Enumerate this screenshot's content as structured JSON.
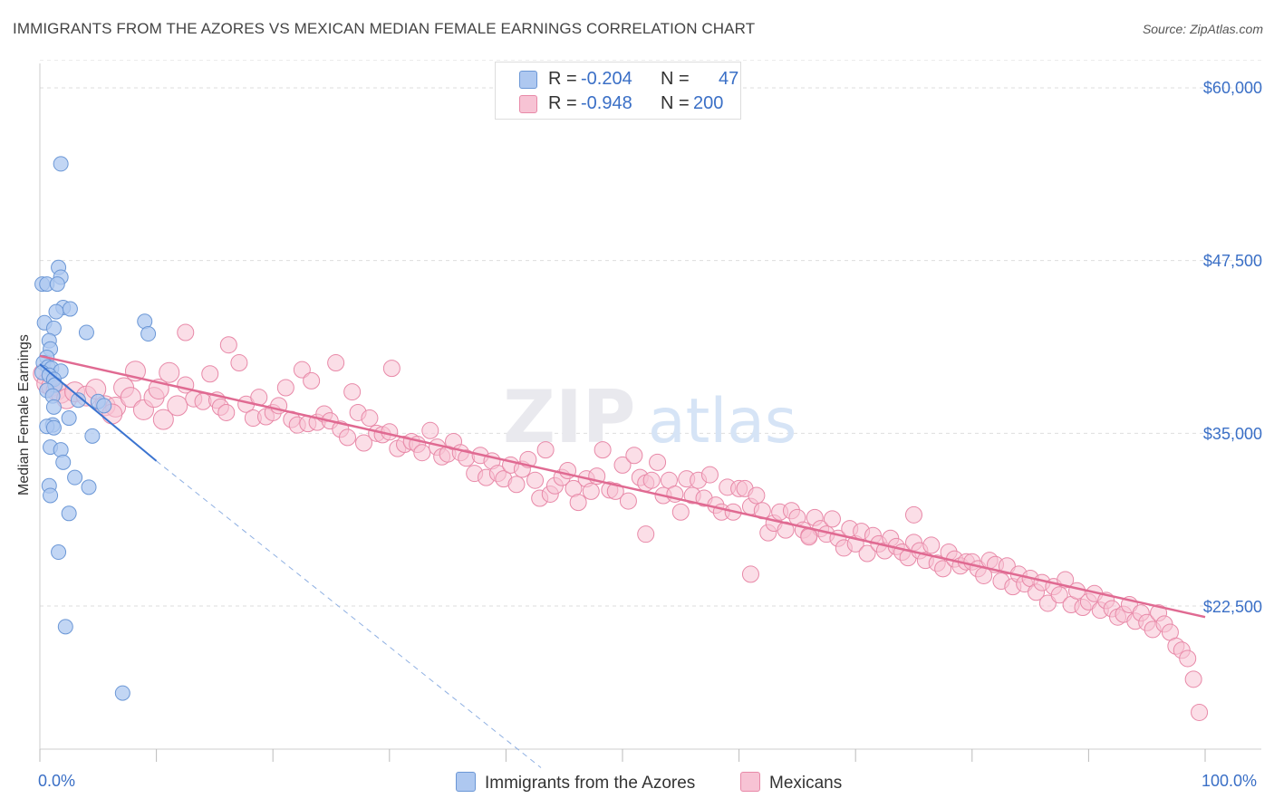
{
  "title": "IMMIGRANTS FROM THE AZORES VS MEXICAN MEDIAN FEMALE EARNINGS CORRELATION CHART",
  "source": "Source: ZipAtlas.com",
  "watermark": {
    "zip": "ZIP",
    "atlas": "atlas"
  },
  "legend": {
    "azores": {
      "r_label": "R =",
      "r_value": "-0.204",
      "n_label": "N =",
      "n_value": "47"
    },
    "mexicans": {
      "r_label": "R =",
      "r_value": "-0.948",
      "n_label": "N =",
      "n_value": "200"
    }
  },
  "bottom_legend": {
    "azores": "Immigrants from the Azores",
    "mexicans": "Mexicans"
  },
  "axis": {
    "x_min_label": "0.0%",
    "x_max_label": "100.0%",
    "y_label": "Median Female Earnings",
    "y_ticks": [
      "$60,000",
      "$47,500",
      "$35,000",
      "$22,500"
    ]
  },
  "colors": {
    "azores_fill": "#aec8f0",
    "azores_stroke": "#6b97d6",
    "azores_line": "#3a73d0",
    "mexican_fill": "#f7c3d4",
    "mexican_stroke": "#e889a8",
    "mexican_line": "#e06a92",
    "tick_text": "#3a6fc6"
  },
  "chart_data": {
    "type": "scatter",
    "title": "IMMIGRANTS FROM THE AZORES VS MEXICAN MEDIAN FEMALE EARNINGS CORRELATION CHART",
    "xlabel": "",
    "ylabel": "Median Female Earnings",
    "xlim": [
      0,
      100
    ],
    "ylim": [
      11000,
      62000
    ],
    "y_ticks": [
      22500,
      35000,
      47500,
      60000
    ],
    "series": [
      {
        "name": "Immigrants from the Azores",
        "r": -0.204,
        "n": 47,
        "trend": {
          "x0": 0,
          "y0": 40000,
          "x1": 10,
          "y1": 33000,
          "dashed_to_x": 43,
          "dashed_y_end": 10800
        },
        "points": [
          [
            1.8,
            54500
          ],
          [
            1.6,
            47000
          ],
          [
            1.8,
            46300
          ],
          [
            0.2,
            45800
          ],
          [
            0.6,
            45800
          ],
          [
            1.5,
            45800
          ],
          [
            2.0,
            44100
          ],
          [
            1.4,
            43800
          ],
          [
            2.6,
            44000
          ],
          [
            0.4,
            43000
          ],
          [
            1.2,
            42600
          ],
          [
            4.0,
            42300
          ],
          [
            9.0,
            43100
          ],
          [
            9.3,
            42200
          ],
          [
            0.8,
            41700
          ],
          [
            0.9,
            41100
          ],
          [
            0.6,
            40500
          ],
          [
            0.3,
            40100
          ],
          [
            0.7,
            39800
          ],
          [
            1.0,
            39700
          ],
          [
            1.8,
            39500
          ],
          [
            0.2,
            39400
          ],
          [
            0.8,
            39200
          ],
          [
            1.2,
            38900
          ],
          [
            1.3,
            38500
          ],
          [
            0.6,
            38100
          ],
          [
            1.1,
            37700
          ],
          [
            3.3,
            37400
          ],
          [
            5.0,
            37300
          ],
          [
            5.5,
            37000
          ],
          [
            1.2,
            36900
          ],
          [
            2.5,
            36100
          ],
          [
            1.1,
            35600
          ],
          [
            0.6,
            35500
          ],
          [
            1.2,
            35400
          ],
          [
            4.5,
            34800
          ],
          [
            0.9,
            34000
          ],
          [
            1.8,
            33800
          ],
          [
            2.0,
            32900
          ],
          [
            3.0,
            31800
          ],
          [
            4.2,
            31100
          ],
          [
            0.8,
            31200
          ],
          [
            0.9,
            30500
          ],
          [
            2.5,
            29200
          ],
          [
            1.6,
            26400
          ],
          [
            2.2,
            21000
          ],
          [
            7.1,
            16200
          ]
        ]
      },
      {
        "name": "Mexicans",
        "r": -0.948,
        "n": 200,
        "trend": {
          "x0": 0,
          "y0": 40600,
          "x1": 100,
          "y1": 21700
        },
        "points": [
          [
            0.3,
            39300
          ],
          [
            0.6,
            38600
          ],
          [
            1.0,
            38400
          ],
          [
            1.4,
            38100
          ],
          [
            1.8,
            37900
          ],
          [
            2.3,
            37500
          ],
          [
            3.0,
            38000
          ],
          [
            4.0,
            37700
          ],
          [
            4.8,
            38200
          ],
          [
            5.6,
            37000
          ],
          [
            6.5,
            36900
          ],
          [
            6.2,
            36400
          ],
          [
            7.2,
            38300
          ],
          [
            7.8,
            37600
          ],
          [
            8.2,
            39500
          ],
          [
            8.9,
            36700
          ],
          [
            9.8,
            37600
          ],
          [
            10.2,
            38200
          ],
          [
            10.6,
            36000
          ],
          [
            11.1,
            39400
          ],
          [
            11.8,
            37000
          ],
          [
            12.5,
            38500
          ],
          [
            13.2,
            37500
          ],
          [
            14.0,
            37300
          ],
          [
            14.6,
            39300
          ],
          [
            12.5,
            42300
          ],
          [
            15.2,
            37400
          ],
          [
            15.5,
            36900
          ],
          [
            16.0,
            36500
          ],
          [
            16.2,
            41400
          ],
          [
            17.1,
            40100
          ],
          [
            17.7,
            37100
          ],
          [
            18.3,
            36100
          ],
          [
            18.8,
            37600
          ],
          [
            19.4,
            36200
          ],
          [
            20.0,
            36500
          ],
          [
            20.5,
            37000
          ],
          [
            21.1,
            38300
          ],
          [
            21.6,
            36000
          ],
          [
            22.1,
            35600
          ],
          [
            22.5,
            39600
          ],
          [
            23.0,
            35700
          ],
          [
            23.3,
            38800
          ],
          [
            23.8,
            35800
          ],
          [
            24.4,
            36400
          ],
          [
            24.9,
            35900
          ],
          [
            25.4,
            40100
          ],
          [
            25.8,
            35300
          ],
          [
            26.4,
            34700
          ],
          [
            26.8,
            38000
          ],
          [
            27.3,
            36500
          ],
          [
            27.8,
            34300
          ],
          [
            28.3,
            36100
          ],
          [
            28.9,
            35000
          ],
          [
            29.4,
            34900
          ],
          [
            30.0,
            35100
          ],
          [
            30.2,
            39700
          ],
          [
            30.7,
            33900
          ],
          [
            31.3,
            34200
          ],
          [
            31.9,
            34400
          ],
          [
            32.4,
            34200
          ],
          [
            32.8,
            33600
          ],
          [
            33.5,
            35200
          ],
          [
            34.1,
            34000
          ],
          [
            34.5,
            33300
          ],
          [
            35.0,
            33500
          ],
          [
            35.5,
            34400
          ],
          [
            36.1,
            33600
          ],
          [
            36.6,
            33200
          ],
          [
            37.3,
            32100
          ],
          [
            37.8,
            33400
          ],
          [
            38.3,
            31800
          ],
          [
            38.8,
            33000
          ],
          [
            39.3,
            32100
          ],
          [
            39.8,
            31700
          ],
          [
            40.4,
            32700
          ],
          [
            40.9,
            31300
          ],
          [
            41.4,
            32400
          ],
          [
            41.9,
            33100
          ],
          [
            42.5,
            31600
          ],
          [
            42.9,
            30300
          ],
          [
            43.4,
            33800
          ],
          [
            43.8,
            30600
          ],
          [
            44.2,
            31200
          ],
          [
            44.8,
            31800
          ],
          [
            45.3,
            32300
          ],
          [
            45.8,
            31000
          ],
          [
            46.2,
            30000
          ],
          [
            46.9,
            31700
          ],
          [
            47.3,
            30800
          ],
          [
            47.8,
            31900
          ],
          [
            48.3,
            33800
          ],
          [
            48.9,
            30900
          ],
          [
            49.4,
            30800
          ],
          [
            50.0,
            32700
          ],
          [
            50.5,
            30100
          ],
          [
            51.0,
            33400
          ],
          [
            51.5,
            31800
          ],
          [
            52.0,
            31400
          ],
          [
            52.5,
            31600
          ],
          [
            53.0,
            32900
          ],
          [
            53.5,
            30500
          ],
          [
            54.0,
            31600
          ],
          [
            54.5,
            30600
          ],
          [
            55.0,
            29300
          ],
          [
            55.5,
            31700
          ],
          [
            56.0,
            30500
          ],
          [
            56.5,
            31600
          ],
          [
            57.0,
            30300
          ],
          [
            57.5,
            32000
          ],
          [
            58.0,
            29800
          ],
          [
            58.5,
            29300
          ],
          [
            59.0,
            31100
          ],
          [
            59.5,
            29300
          ],
          [
            60.0,
            31000
          ],
          [
            60.5,
            31000
          ],
          [
            61.0,
            29700
          ],
          [
            61.5,
            30500
          ],
          [
            62.0,
            29400
          ],
          [
            62.5,
            27800
          ],
          [
            63.0,
            28500
          ],
          [
            63.5,
            29300
          ],
          [
            64.0,
            28000
          ],
          [
            64.5,
            29400
          ],
          [
            65.0,
            28900
          ],
          [
            65.5,
            28000
          ],
          [
            66.0,
            27600
          ],
          [
            66.5,
            28900
          ],
          [
            67.0,
            28100
          ],
          [
            67.5,
            27700
          ],
          [
            68.0,
            28800
          ],
          [
            68.5,
            27400
          ],
          [
            69.0,
            26700
          ],
          [
            69.5,
            28100
          ],
          [
            70.0,
            27000
          ],
          [
            70.5,
            27900
          ],
          [
            71.0,
            26300
          ],
          [
            71.5,
            27600
          ],
          [
            72.0,
            27000
          ],
          [
            72.5,
            26500
          ],
          [
            73.0,
            27400
          ],
          [
            73.5,
            26800
          ],
          [
            74.0,
            26400
          ],
          [
            74.5,
            26000
          ],
          [
            75.0,
            27100
          ],
          [
            75.5,
            26500
          ],
          [
            76.0,
            25800
          ],
          [
            76.5,
            26900
          ],
          [
            77.0,
            25600
          ],
          [
            77.5,
            25200
          ],
          [
            78.0,
            26400
          ],
          [
            78.5,
            25900
          ],
          [
            79.0,
            25400
          ],
          [
            79.5,
            25700
          ],
          [
            80.0,
            25700
          ],
          [
            80.5,
            25200
          ],
          [
            81.0,
            24700
          ],
          [
            81.5,
            25800
          ],
          [
            82.0,
            25500
          ],
          [
            82.5,
            24300
          ],
          [
            83.0,
            25400
          ],
          [
            83.5,
            23900
          ],
          [
            84.0,
            24800
          ],
          [
            84.5,
            24100
          ],
          [
            85.0,
            24500
          ],
          [
            85.5,
            23500
          ],
          [
            86.0,
            24200
          ],
          [
            86.5,
            22700
          ],
          [
            87.0,
            23900
          ],
          [
            87.5,
            23300
          ],
          [
            88.0,
            24400
          ],
          [
            88.5,
            22600
          ],
          [
            89.0,
            23600
          ],
          [
            89.5,
            22400
          ],
          [
            90.0,
            22800
          ],
          [
            90.5,
            23400
          ],
          [
            91.0,
            22200
          ],
          [
            91.5,
            22900
          ],
          [
            92.0,
            22300
          ],
          [
            92.5,
            21700
          ],
          [
            93.0,
            21900
          ],
          [
            93.5,
            22600
          ],
          [
            94.0,
            21400
          ],
          [
            94.5,
            22000
          ],
          [
            95.0,
            21300
          ],
          [
            95.5,
            20800
          ],
          [
            96.0,
            22000
          ],
          [
            96.5,
            21200
          ],
          [
            97.0,
            20600
          ],
          [
            97.5,
            19600
          ],
          [
            98.0,
            19300
          ],
          [
            98.5,
            18700
          ],
          [
            99.0,
            17200
          ],
          [
            99.5,
            14800
          ],
          [
            61.0,
            24800
          ],
          [
            75.0,
            29100
          ],
          [
            52.0,
            27700
          ],
          [
            66.0,
            27500
          ]
        ]
      }
    ]
  }
}
